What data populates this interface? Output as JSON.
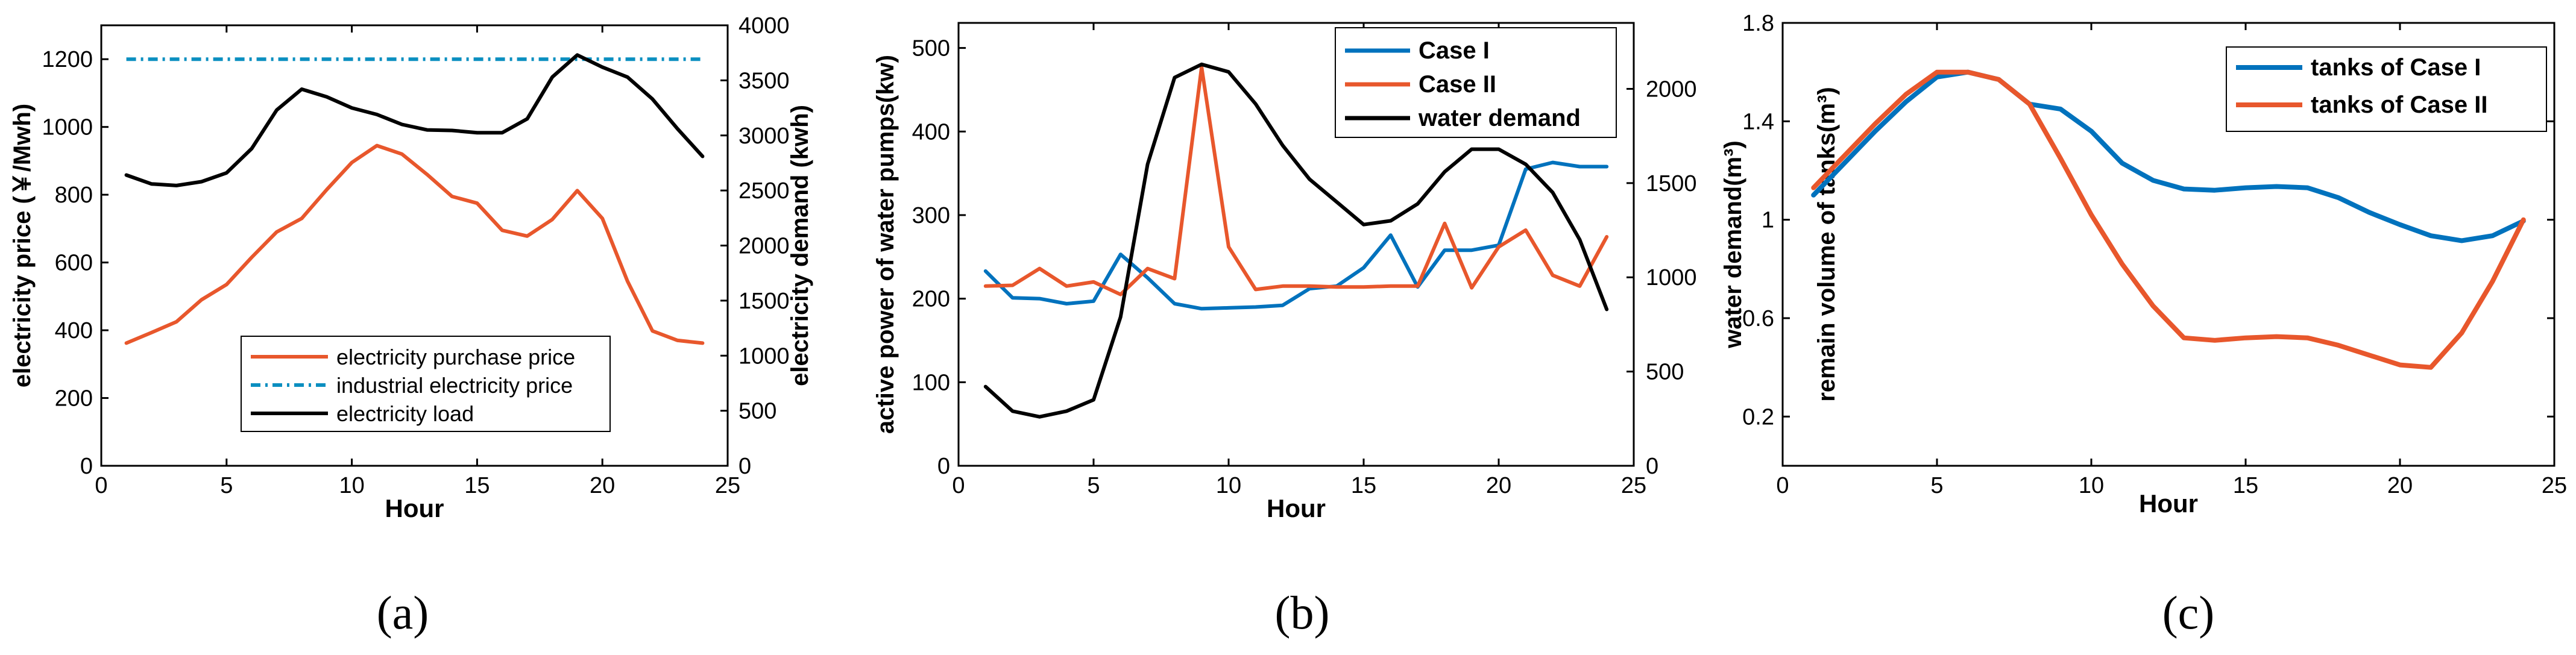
{
  "colors": {
    "blue": "#0072BD",
    "orange": "#E8572C",
    "black": "#000000",
    "dash_blue": "#0B8FC0"
  },
  "chart_data": [
    {
      "id": "a",
      "type": "line",
      "caption": "(a)",
      "xlabel": "Hour",
      "ylabel_left": "electricity price (￥/Mwh)",
      "ylabel_right": "electricity demand (kwh)",
      "xlim": [
        0,
        25
      ],
      "xticks": [
        "0",
        "5",
        "10",
        "15",
        "20",
        "25"
      ],
      "ylim_left": [
        0,
        1300
      ],
      "yticks_left": [
        "0",
        "200",
        "400",
        "600",
        "800",
        "1000",
        "1200"
      ],
      "ylim_right": [
        0,
        4000
      ],
      "yticks_right": [
        "0",
        "500",
        "1000",
        "1500",
        "2000",
        "2500",
        "3000",
        "3500",
        "4000"
      ],
      "legend_position": "bottom-left",
      "legend": [
        "electricity purchase price",
        "industrial electricity price",
        "electricity load"
      ],
      "x": [
        1,
        2,
        3,
        4,
        5,
        6,
        7,
        8,
        9,
        10,
        11,
        12,
        13,
        14,
        15,
        16,
        17,
        18,
        19,
        20,
        21,
        22,
        23,
        24
      ],
      "series": [
        {
          "name": "electricity purchase price",
          "axis": "left",
          "color": "orange",
          "dash": false,
          "values": [
            362,
            393,
            425,
            490,
            535,
            615,
            690,
            730,
            815,
            895,
            945,
            920,
            860,
            795,
            775,
            695,
            678,
            727,
            812,
            730,
            545,
            398,
            370,
            362
          ]
        },
        {
          "name": "industrial electricity price",
          "axis": "left",
          "color": "dash_blue",
          "dash": true,
          "values": [
            1200,
            1200,
            1200,
            1200,
            1200,
            1200,
            1200,
            1200,
            1200,
            1200,
            1200,
            1200,
            1200,
            1200,
            1200,
            1200,
            1200,
            1200,
            1200,
            1200,
            1200,
            1200,
            1200,
            1200
          ]
        },
        {
          "name": "electricity load",
          "axis": "right",
          "color": "black",
          "dash": false,
          "values": [
            2640,
            2560,
            2545,
            2580,
            2660,
            2880,
            3230,
            3420,
            3350,
            3250,
            3190,
            3100,
            3050,
            3045,
            3025,
            3025,
            3150,
            3530,
            3730,
            3620,
            3530,
            3330,
            3060,
            2810
          ]
        }
      ]
    },
    {
      "id": "b",
      "type": "line",
      "caption": "(b)",
      "xlabel": "Hour",
      "ylabel_left": "active power of water pumps(kw)",
      "ylabel_right": "water demand(m³)",
      "xlim": [
        0,
        25
      ],
      "xticks": [
        "0",
        "5",
        "10",
        "15",
        "20",
        "25"
      ],
      "ylim_left": [
        0,
        530
      ],
      "yticks_left": [
        "0",
        "100",
        "200",
        "300",
        "400",
        "500"
      ],
      "ylim_right": [
        0,
        2350
      ],
      "yticks_right": [
        "0",
        "500",
        "1000",
        "1500",
        "2000"
      ],
      "legend_position": "top-right",
      "legend": [
        "Case I",
        "Case II",
        "water demand"
      ],
      "x": [
        1,
        2,
        3,
        4,
        5,
        6,
        7,
        8,
        9,
        10,
        11,
        12,
        13,
        14,
        15,
        16,
        17,
        18,
        19,
        20,
        21,
        22,
        23,
        24
      ],
      "series": [
        {
          "name": "Case I",
          "axis": "left",
          "color": "blue",
          "dash": false,
          "values": [
            233,
            201,
            200,
            194,
            197,
            253,
            225,
            194,
            188,
            189,
            190,
            192,
            212,
            215,
            237,
            276,
            214,
            258,
            258,
            264,
            355,
            363,
            358,
            358
          ]
        },
        {
          "name": "Case II",
          "axis": "left",
          "color": "orange",
          "dash": false,
          "values": [
            215,
            216,
            236,
            215,
            220,
            205,
            236,
            224,
            477,
            262,
            211,
            215,
            215,
            214,
            214,
            215,
            215,
            290,
            213,
            262,
            282,
            228,
            215,
            274
          ]
        },
        {
          "name": "water demand",
          "axis": "right",
          "color": "black",
          "dash": false,
          "values": [
            420,
            290,
            260,
            290,
            350,
            790,
            1600,
            2060,
            2130,
            2090,
            1920,
            1700,
            1520,
            1400,
            1280,
            1300,
            1390,
            1560,
            1680,
            1680,
            1600,
            1450,
            1200,
            830
          ]
        }
      ]
    },
    {
      "id": "c",
      "type": "line",
      "caption": "(c)",
      "xlabel": "Hour",
      "ylabel_left": "remain volume of tanks(m³)",
      "xlim": [
        0,
        25
      ],
      "xticks": [
        "0",
        "5",
        "10",
        "15",
        "20",
        "25"
      ],
      "ylim_left": [
        0,
        1.8
      ],
      "yticks_left": [
        "0.2",
        "0.6",
        "1",
        "1.4",
        "1.8"
      ],
      "ytick_values_left": [
        0.2,
        0.6,
        1.0,
        1.4,
        1.8
      ],
      "legend_position": "top-right",
      "legend": [
        "tanks of Case I",
        "tanks of Case II"
      ],
      "x": [
        1,
        2,
        3,
        4,
        5,
        6,
        7,
        8,
        9,
        10,
        11,
        12,
        13,
        14,
        15,
        16,
        17,
        18,
        19,
        20,
        21,
        22,
        23,
        24
      ],
      "series": [
        {
          "name": "tanks of Case I",
          "axis": "left",
          "color": "blue",
          "dash": false,
          "values": [
            1.1,
            1.23,
            1.36,
            1.48,
            1.58,
            1.6,
            1.57,
            1.47,
            1.45,
            1.36,
            1.23,
            1.16,
            1.125,
            1.12,
            1.13,
            1.135,
            1.13,
            1.09,
            1.03,
            0.98,
            0.935,
            0.915,
            0.935,
            0.995
          ]
        },
        {
          "name": "tanks of Case II",
          "axis": "left",
          "color": "orange",
          "dash": false,
          "values": [
            1.13,
            1.26,
            1.39,
            1.51,
            1.6,
            1.6,
            1.57,
            1.47,
            1.25,
            1.02,
            0.82,
            0.65,
            0.52,
            0.51,
            0.52,
            0.525,
            0.52,
            0.49,
            0.45,
            0.41,
            0.4,
            0.54,
            0.75,
            1.0
          ]
        }
      ]
    }
  ]
}
